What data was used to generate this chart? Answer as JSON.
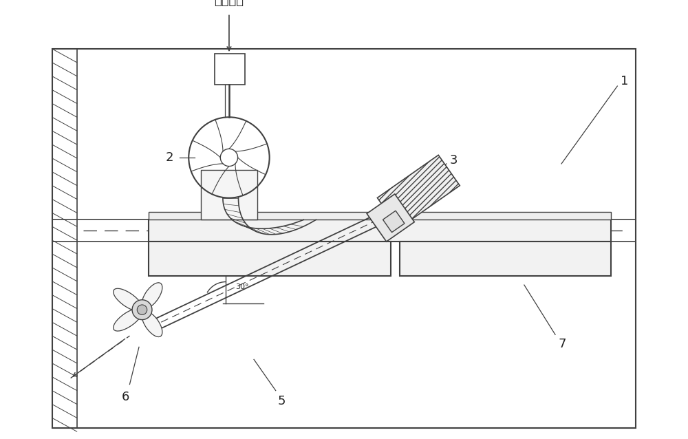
{
  "bg_color": "#ffffff",
  "line_color": "#404040",
  "text_color": "#222222",
  "label_air": "空气进入",
  "label_1": "1",
  "label_2": "2",
  "label_3": "3",
  "label_5": "5",
  "label_6": "6",
  "label_7": "7",
  "label_30": "30°",
  "figsize": [
    10.0,
    6.38
  ],
  "dpi": 100
}
